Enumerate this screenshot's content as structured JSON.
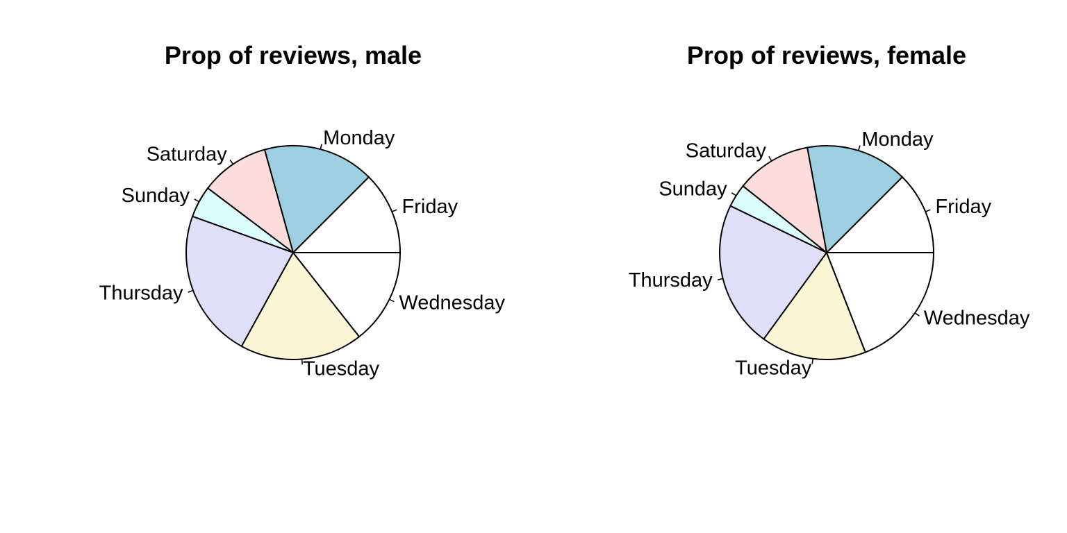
{
  "chart_data": [
    {
      "type": "pie",
      "title": "Prop of reviews, male",
      "start_angle_deg": 0,
      "direction": "counterclockwise",
      "slices": [
        {
          "label": "Friday",
          "value": 0.125,
          "color": "#ffffff"
        },
        {
          "label": "Monday",
          "value": 0.168,
          "color": "#9ecfe0"
        },
        {
          "label": "Saturday",
          "value": 0.104,
          "color": "#fddcdc"
        },
        {
          "label": "Sunday",
          "value": 0.048,
          "color": "#dcfdfd"
        },
        {
          "label": "Thursday",
          "value": 0.225,
          "color": "#dfdffa"
        },
        {
          "label": "Tuesday",
          "value": 0.186,
          "color": "#fdf6d6"
        },
        {
          "label": "Wednesday",
          "value": 0.144,
          "color": "#ffffff"
        }
      ]
    },
    {
      "type": "pie",
      "title": "Prop of reviews, female",
      "start_angle_deg": 0,
      "direction": "counterclockwise",
      "slices": [
        {
          "label": "Friday",
          "value": 0.125,
          "color": "#ffffff"
        },
        {
          "label": "Monday",
          "value": 0.154,
          "color": "#9ecfe0"
        },
        {
          "label": "Saturday",
          "value": 0.114,
          "color": "#fddcdc"
        },
        {
          "label": "Sunday",
          "value": 0.035,
          "color": "#dcfdfd"
        },
        {
          "label": "Thursday",
          "value": 0.222,
          "color": "#dfdffa"
        },
        {
          "label": "Tuesday",
          "value": 0.159,
          "color": "#fdf6d6"
        },
        {
          "label": "Wednesday",
          "value": 0.191,
          "color": "#ffffff"
        }
      ]
    }
  ]
}
